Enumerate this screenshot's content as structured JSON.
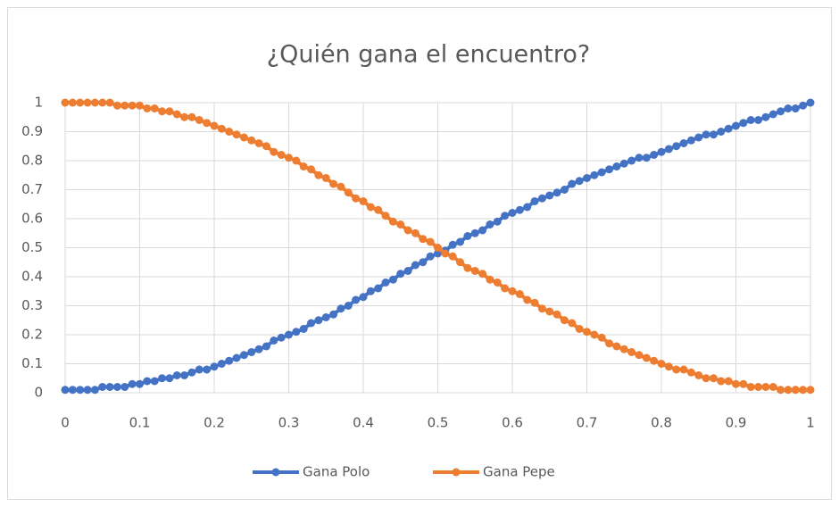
{
  "chart_data": {
    "type": "scatter",
    "title": "¿Quién gana el encuentro?",
    "x": [
      0,
      0.01,
      0.02,
      0.03,
      0.04,
      0.05,
      0.06,
      0.07,
      0.08,
      0.09,
      0.1,
      0.11,
      0.12,
      0.13,
      0.14,
      0.15,
      0.16,
      0.17,
      0.18,
      0.19,
      0.2,
      0.21,
      0.22,
      0.23,
      0.24,
      0.25,
      0.26,
      0.27,
      0.28,
      0.29,
      0.3,
      0.31,
      0.32,
      0.33,
      0.34,
      0.35,
      0.36,
      0.37,
      0.38,
      0.39,
      0.4,
      0.41,
      0.42,
      0.43,
      0.44,
      0.45,
      0.46,
      0.47,
      0.48,
      0.49,
      0.5,
      0.51,
      0.52,
      0.53,
      0.54,
      0.55,
      0.56,
      0.57,
      0.58,
      0.59,
      0.6,
      0.61,
      0.62,
      0.63,
      0.64,
      0.65,
      0.66,
      0.67,
      0.68,
      0.69,
      0.7,
      0.71,
      0.72,
      0.73,
      0.74,
      0.75,
      0.76,
      0.77,
      0.78,
      0.79,
      0.8,
      0.81,
      0.82,
      0.83,
      0.84,
      0.85,
      0.86,
      0.87,
      0.88,
      0.89,
      0.9,
      0.91,
      0.92,
      0.93,
      0.94,
      0.95,
      0.96,
      0.97,
      0.98,
      0.99,
      1
    ],
    "series": [
      {
        "name": "Gana Polo",
        "color": "#4472c4",
        "values": [
          0.01,
          0.01,
          0.01,
          0.01,
          0.01,
          0.02,
          0.02,
          0.02,
          0.02,
          0.03,
          0.03,
          0.04,
          0.04,
          0.05,
          0.05,
          0.06,
          0.06,
          0.07,
          0.08,
          0.08,
          0.09,
          0.1,
          0.11,
          0.12,
          0.13,
          0.14,
          0.15,
          0.16,
          0.18,
          0.19,
          0.2,
          0.21,
          0.22,
          0.24,
          0.25,
          0.26,
          0.27,
          0.29,
          0.3,
          0.32,
          0.33,
          0.35,
          0.36,
          0.38,
          0.39,
          0.41,
          0.42,
          0.44,
          0.45,
          0.47,
          0.48,
          0.49,
          0.51,
          0.52,
          0.54,
          0.55,
          0.56,
          0.58,
          0.59,
          0.61,
          0.62,
          0.63,
          0.64,
          0.66,
          0.67,
          0.68,
          0.69,
          0.7,
          0.72,
          0.73,
          0.74,
          0.75,
          0.76,
          0.77,
          0.78,
          0.79,
          0.8,
          0.81,
          0.81,
          0.82,
          0.83,
          0.84,
          0.85,
          0.86,
          0.87,
          0.88,
          0.89,
          0.89,
          0.9,
          0.91,
          0.92,
          0.93,
          0.94,
          0.94,
          0.95,
          0.96,
          0.97,
          0.98,
          0.98,
          0.99,
          1
        ]
      },
      {
        "name": "Gana Pepe",
        "color": "#ed7d31",
        "values": [
          1,
          1,
          1,
          1,
          1,
          1,
          1,
          0.99,
          0.99,
          0.99,
          0.99,
          0.98,
          0.98,
          0.97,
          0.97,
          0.96,
          0.95,
          0.95,
          0.94,
          0.93,
          0.92,
          0.91,
          0.9,
          0.89,
          0.88,
          0.87,
          0.86,
          0.85,
          0.83,
          0.82,
          0.81,
          0.8,
          0.78,
          0.77,
          0.75,
          0.74,
          0.72,
          0.71,
          0.69,
          0.67,
          0.66,
          0.64,
          0.63,
          0.61,
          0.59,
          0.58,
          0.56,
          0.55,
          0.53,
          0.52,
          0.5,
          0.48,
          0.47,
          0.45,
          0.43,
          0.42,
          0.41,
          0.39,
          0.38,
          0.36,
          0.35,
          0.34,
          0.32,
          0.31,
          0.29,
          0.28,
          0.27,
          0.25,
          0.24,
          0.22,
          0.21,
          0.2,
          0.19,
          0.17,
          0.16,
          0.15,
          0.14,
          0.13,
          0.12,
          0.11,
          0.1,
          0.09,
          0.08,
          0.08,
          0.07,
          0.06,
          0.05,
          0.05,
          0.04,
          0.04,
          0.03,
          0.03,
          0.02,
          0.02,
          0.02,
          0.02,
          0.01,
          0.01,
          0.01,
          0.01,
          0.01
        ]
      }
    ],
    "xlim": [
      0,
      1
    ],
    "xticks": [
      0,
      0.1,
      0.2,
      0.3,
      0.4,
      0.5,
      0.6,
      0.7,
      0.8,
      0.9,
      1
    ],
    "ylim": [
      0,
      1
    ],
    "yticks": [
      0,
      0.1,
      0.2,
      0.3,
      0.4,
      0.5,
      0.6,
      0.7,
      0.8,
      0.9,
      1
    ],
    "grid": true,
    "legend": "bottom"
  }
}
